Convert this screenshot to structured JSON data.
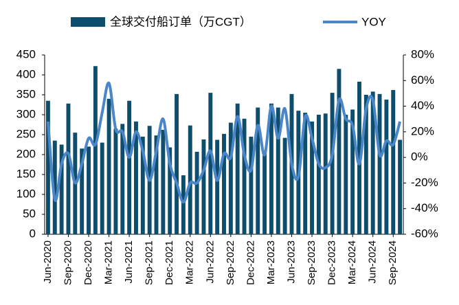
{
  "chart_data": {
    "type": "bar-line",
    "categories": [
      "Jun-2020",
      null,
      null,
      "Sep-2020",
      null,
      null,
      "Dec-2020",
      null,
      null,
      "Mar-2021",
      null,
      null,
      "Jun-2021",
      null,
      null,
      "Sep-2021",
      null,
      null,
      "Dec-2021",
      null,
      null,
      "Mar-2022",
      null,
      null,
      "Jun-2022",
      null,
      null,
      "Sep-2022",
      null,
      null,
      "Dec-2022",
      null,
      null,
      "Mar-2023",
      null,
      null,
      "Jun-2023",
      null,
      null,
      "Sep-2023",
      null,
      null,
      "Dec-2023",
      null,
      null,
      "Mar-2024",
      null,
      null,
      "Jun-2024",
      null,
      null,
      "Sep-2024",
      null
    ],
    "series": [
      {
        "name": "全球交付船订单（万CGT）",
        "color": "#0e4d6c",
        "values": [
          335,
          235,
          225,
          328,
          255,
          215,
          220,
          422,
          230,
          340,
          265,
          277,
          335,
          283,
          245,
          272,
          248,
          262,
          218,
          352,
          148,
          273,
          207,
          238,
          355,
          237,
          252,
          280,
          328,
          290,
          245,
          318,
          207,
          328,
          318,
          242,
          352,
          310,
          305,
          283,
          300,
          303,
          355,
          415,
          300,
          313,
          383,
          350,
          358,
          352,
          338,
          362,
          237
        ]
      },
      {
        "name": "YOY",
        "color": "#4a86c8",
        "axis": "y2",
        "values": [
          28,
          -33,
          -5,
          3,
          -20,
          -5,
          15,
          10,
          35,
          58,
          22,
          20,
          0,
          20,
          5,
          -18,
          5,
          30,
          -5,
          -20,
          -35,
          -20,
          -20,
          -10,
          5,
          -18,
          3,
          0,
          32,
          2,
          -10,
          25,
          2,
          40,
          15,
          38,
          -5,
          -15,
          32,
          15,
          -5,
          -8,
          2,
          45,
          30,
          25,
          -5,
          38,
          45,
          2,
          13,
          10,
          28
        ]
      }
    ],
    "ylim": [
      0,
      450
    ],
    "yticks": [
      0,
      50,
      100,
      150,
      200,
      250,
      300,
      350,
      400,
      450
    ],
    "y2lim": [
      -60,
      80
    ],
    "y2ticks": [
      {
        "value": -60,
        "label": "-60%"
      },
      {
        "value": -40,
        "label": "-40%"
      },
      {
        "value": -20,
        "label": "-20%"
      },
      {
        "value": 0,
        "label": "0%"
      },
      {
        "value": 20,
        "label": "20%"
      },
      {
        "value": 40,
        "label": "40%"
      },
      {
        "value": 60,
        "label": "60%"
      },
      {
        "value": 80,
        "label": "80%"
      }
    ],
    "legend": "top"
  }
}
